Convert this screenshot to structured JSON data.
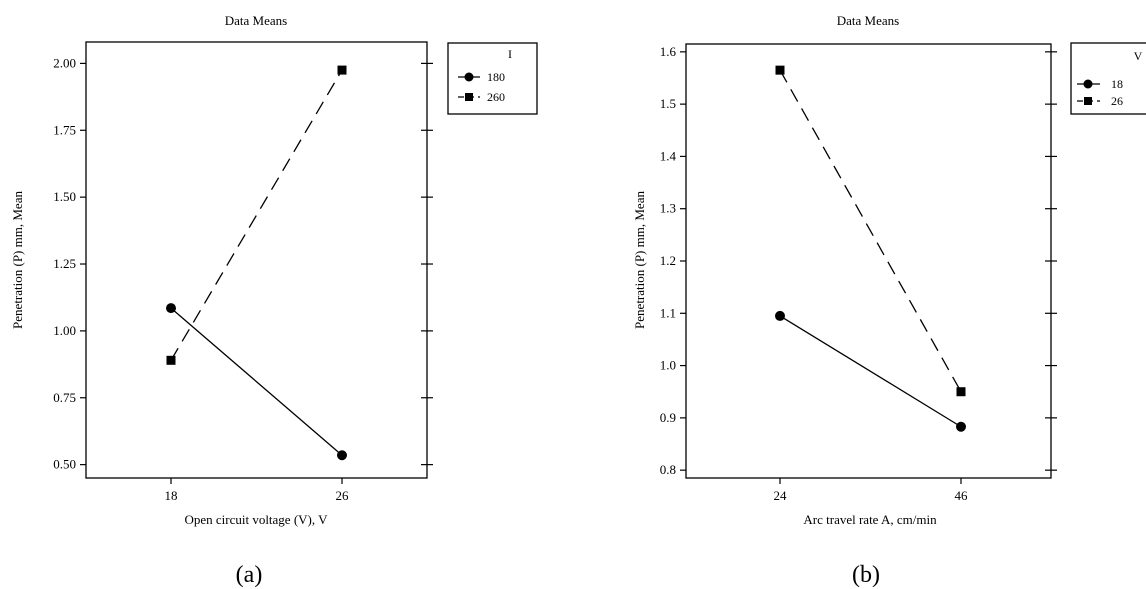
{
  "chart_data": [
    {
      "type": "line",
      "title": "Data Means",
      "xlabel": "Open circuit voltage (V), V",
      "ylabel": "Penetration (P) mm, Mean",
      "categories": [
        "18",
        "26"
      ],
      "ylim": [
        0.45,
        2.08
      ],
      "yticks": [
        "0.50",
        "0.75",
        "1.00",
        "1.25",
        "1.50",
        "1.75",
        "2.00"
      ],
      "legend_title": "I",
      "legend_position": "right",
      "caption": "(a)",
      "series": [
        {
          "name": "180",
          "marker": "circle",
          "dash": "solid",
          "values": [
            1.085,
            0.535
          ]
        },
        {
          "name": "260",
          "marker": "square",
          "dash": "dashed",
          "values": [
            0.89,
            1.975
          ]
        }
      ]
    },
    {
      "type": "line",
      "title": "Data Means",
      "xlabel": "Arc travel rate A, cm/min",
      "ylabel": "Penetration (P) mm, Mean",
      "categories": [
        "24",
        "46"
      ],
      "ylim": [
        0.785,
        1.615
      ],
      "yticks": [
        "0.8",
        "0.9",
        "1.0",
        "1.1",
        "1.2",
        "1.3",
        "1.4",
        "1.5",
        "1.6"
      ],
      "legend_title": "V",
      "legend_position": "right",
      "caption": "(b)",
      "series": [
        {
          "name": "18",
          "marker": "circle",
          "dash": "solid",
          "values": [
            1.095,
            0.883
          ]
        },
        {
          "name": "26",
          "marker": "square",
          "dash": "dashed",
          "values": [
            1.565,
            0.95
          ]
        }
      ]
    }
  ]
}
